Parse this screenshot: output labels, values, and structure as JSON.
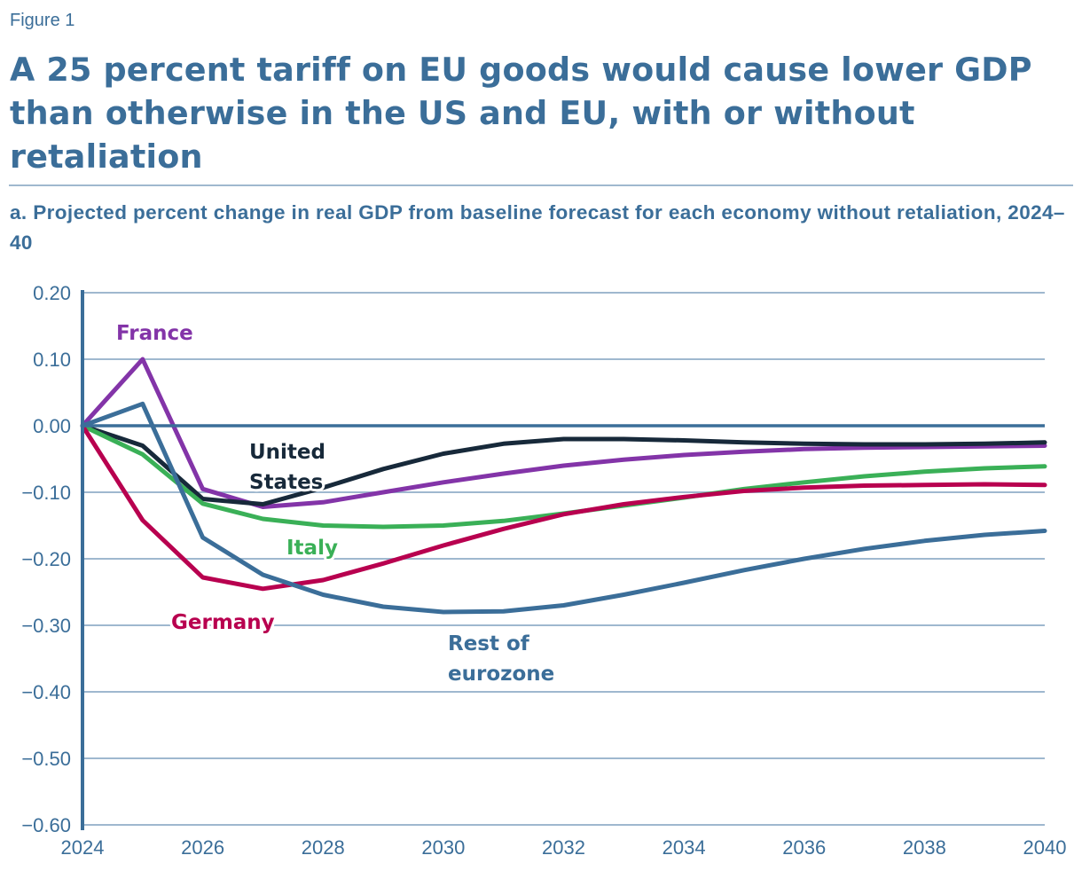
{
  "figure_label": "Figure 1",
  "title": "A 25 percent tariff on EU goods would cause lower GDP than otherwise in the US and EU, with or without retaliation",
  "subtitle": "a. Projected percent change in real GDP from baseline forecast for each economy without retaliation, 2024–40",
  "chart_data": {
    "type": "line",
    "title": "A 25 percent tariff on EU goods would cause lower GDP than otherwise in the US and EU, with or without retaliation",
    "subtitle": "a. Projected percent change in real GDP from baseline forecast for each economy without retaliation, 2024–40",
    "xlabel": "",
    "ylabel": "",
    "xlim": [
      2024,
      2040
    ],
    "ylim": [
      -0.6,
      0.2
    ],
    "grid": true,
    "legend": "direct labels on lines",
    "x": [
      2024,
      2025,
      2026,
      2027,
      2028,
      2029,
      2030,
      2031,
      2032,
      2033,
      2034,
      2035,
      2036,
      2037,
      2038,
      2039,
      2040
    ],
    "x_ticks": [
      "2024",
      "2026",
      "2028",
      "2030",
      "2032",
      "2034",
      "2036",
      "2038",
      "2040"
    ],
    "x_tick_values": [
      2024,
      2026,
      2028,
      2030,
      2032,
      2034,
      2036,
      2038,
      2040
    ],
    "y_ticks": [
      "0.20",
      "0.10",
      "0.00",
      "−0.10",
      "−0.20",
      "−0.30",
      "−0.40",
      "−0.50",
      "−0.60"
    ],
    "y_tick_values": [
      0.2,
      0.1,
      0.0,
      -0.1,
      -0.2,
      -0.3,
      -0.4,
      -0.5,
      -0.6
    ],
    "series": [
      {
        "name": "France",
        "color": "#8334a8",
        "values": [
          0.0,
          0.1,
          -0.095,
          -0.122,
          -0.115,
          -0.1,
          -0.085,
          -0.072,
          -0.06,
          -0.051,
          -0.044,
          -0.039,
          -0.035,
          -0.033,
          -0.032,
          -0.031,
          -0.03
        ]
      },
      {
        "name": "United States",
        "color": "#17293a",
        "values": [
          0.0,
          -0.03,
          -0.11,
          -0.118,
          -0.093,
          -0.065,
          -0.042,
          -0.027,
          -0.02,
          -0.02,
          -0.022,
          -0.025,
          -0.027,
          -0.028,
          -0.028,
          -0.027,
          -0.025
        ]
      },
      {
        "name": "Italy",
        "color": "#3ab057",
        "values": [
          0.0,
          -0.043,
          -0.117,
          -0.14,
          -0.15,
          -0.152,
          -0.15,
          -0.143,
          -0.132,
          -0.12,
          -0.108,
          -0.095,
          -0.085,
          -0.076,
          -0.069,
          -0.064,
          -0.061
        ]
      },
      {
        "name": "Germany",
        "color": "#b8004f",
        "values": [
          0.0,
          -0.142,
          -0.228,
          -0.245,
          -0.232,
          -0.207,
          -0.18,
          -0.155,
          -0.133,
          -0.118,
          -0.107,
          -0.098,
          -0.093,
          -0.09,
          -0.089,
          -0.088,
          -0.089
        ]
      },
      {
        "name": "Rest of eurozone",
        "color": "#3b6e99",
        "values": [
          0.0,
          0.033,
          -0.168,
          -0.224,
          -0.254,
          -0.272,
          -0.28,
          -0.279,
          -0.27,
          -0.254,
          -0.236,
          -0.217,
          -0.2,
          -0.185,
          -0.173,
          -0.164,
          -0.158
        ]
      }
    ],
    "labels": [
      {
        "series": "France",
        "lines": [
          "France"
        ]
      },
      {
        "series": "United States",
        "lines": [
          "United",
          "States"
        ]
      },
      {
        "series": "Italy",
        "lines": [
          "Italy"
        ]
      },
      {
        "series": "Germany",
        "lines": [
          "Germany"
        ]
      },
      {
        "series": "Rest of eurozone",
        "lines": [
          "Rest of",
          "eurozone"
        ]
      }
    ]
  }
}
